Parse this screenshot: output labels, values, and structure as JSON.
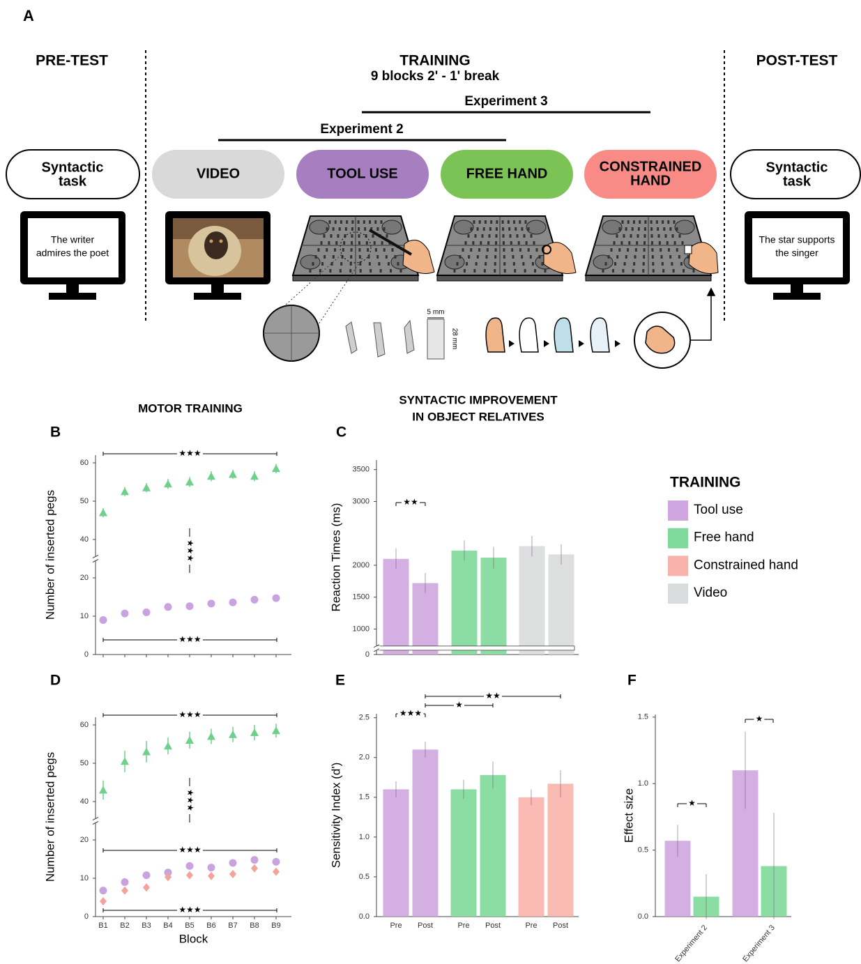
{
  "figure": {
    "panel": "A",
    "pretest": "PRE-TEST",
    "training": "TRAINING",
    "training_sub": "9 blocks 2' - 1' break",
    "posttest": "POST-TEST",
    "exp3": "Experiment 3",
    "exp2": "Experiment 2",
    "task_left": [
      "Syntactic",
      "task"
    ],
    "task_right": [
      "Syntactic",
      "task"
    ],
    "screen_left": [
      "The writer",
      "admires the poet"
    ],
    "screen_right": [
      "The star supports",
      "the singer"
    ],
    "conditions": [
      {
        "label": [
          "VIDEO"
        ],
        "color": "#d9d9d9"
      },
      {
        "label": [
          "TOOL USE"
        ],
        "color": "#a77fc1"
      },
      {
        "label": [
          "FREE HAND"
        ],
        "color": "#7cc356"
      },
      {
        "label": [
          "CONSTRAINED",
          "HAND"
        ],
        "color": "#f88b85"
      }
    ],
    "peg_width": "5 mm",
    "peg_height": "28 mm",
    "motor_header": "MOTOR TRAINING",
    "syntax_header": [
      "SYNTACTIC IMPROVEMENT",
      "IN OBJECT RELATIVES"
    ]
  },
  "chart_data": [
    {
      "type": "point",
      "panel": "B",
      "ylabel": "Number of inserted pegs",
      "ylim": [
        0,
        62
      ],
      "ybreak": [
        25,
        35
      ],
      "yticks": [
        0,
        10,
        20,
        40,
        50,
        60
      ],
      "series": [
        {
          "color": "#6fd08c",
          "marker": "triangle",
          "values": [
            47,
            52.5,
            53.5,
            54.5,
            55,
            56.5,
            57,
            56.5,
            58.5
          ],
          "errors": [
            1.2,
            1.2,
            1.2,
            1.3,
            1.3,
            1.3,
            1.2,
            1.3,
            1.2
          ]
        },
        {
          "color": "#c9a2e0",
          "marker": "circle",
          "values": [
            9,
            10.7,
            11,
            12.4,
            12.6,
            13.3,
            13.6,
            14.3,
            14.7
          ],
          "errors": [
            0.7,
            0.7,
            0.7,
            0.7,
            0.7,
            0.7,
            0.7,
            0.7,
            0.7
          ]
        }
      ],
      "annotations": [
        "★★★",
        "★★★",
        "★★★"
      ]
    },
    {
      "type": "bar",
      "panel": "C",
      "ylabel": "Reaction Times (ms)",
      "ylim": [
        0,
        3650
      ],
      "ybreak": [
        100,
        700
      ],
      "yticks": [
        0,
        1000,
        1500,
        2000,
        3000,
        3500
      ],
      "legend_title": "TRAINING",
      "series": [
        {
          "name": "Tool use",
          "color": "#cfa6df",
          "values": [
            2100,
            1720
          ],
          "errors": [
            160,
            160
          ]
        },
        {
          "name": "Free hand",
          "color": "#7ed99a",
          "values": [
            2230,
            2120
          ],
          "errors": [
            160,
            170
          ]
        },
        {
          "name": "Video",
          "color": "#d9dcdc",
          "values": [
            2300,
            2170
          ],
          "errors": [
            160,
            160
          ]
        }
      ],
      "annotations": [
        "★★"
      ]
    },
    {
      "type": "point",
      "panel": "D",
      "ylabel": "Number of inserted pegs",
      "xlabel": "Block",
      "categories": [
        "B1",
        "B2",
        "B3",
        "B4",
        "B5",
        "B6",
        "B7",
        "B8",
        "B9"
      ],
      "ylim": [
        0,
        62
      ],
      "ybreak": [
        25,
        35
      ],
      "yticks": [
        0,
        10,
        20,
        40,
        50,
        60
      ],
      "series": [
        {
          "color": "#6fd08c",
          "marker": "triangle",
          "values": [
            43,
            50.5,
            53,
            54.5,
            56,
            57,
            57.5,
            58,
            58.5
          ],
          "errors": [
            2.5,
            2.8,
            2.8,
            2.2,
            2.2,
            2,
            2,
            2,
            1.8
          ]
        },
        {
          "color": "#c9a2e0",
          "marker": "circle",
          "values": [
            6.8,
            9,
            10.8,
            11.5,
            13.2,
            12.8,
            14,
            14.8,
            14.3
          ],
          "errors": [
            0.8,
            0.8,
            0.8,
            0.8,
            0.8,
            0.8,
            0.8,
            0.8,
            0.8
          ]
        },
        {
          "color": "#f4a39b",
          "marker": "diamond",
          "values": [
            4,
            6.8,
            7.6,
            10.3,
            10.8,
            10.6,
            11.1,
            12.6,
            11.7
          ],
          "errors": [
            0.8,
            0.8,
            0.8,
            0.8,
            0.8,
            0.8,
            0.8,
            0.8,
            0.8
          ]
        }
      ],
      "annotations": [
        "★★★",
        "★★★",
        "★★★",
        "★★★"
      ]
    },
    {
      "type": "bar",
      "panel": "E",
      "ylabel": "Sensitivity Index (d')",
      "categories": [
        "Pre",
        "Post"
      ],
      "ylim": [
        0,
        2.55
      ],
      "yticks": [
        {
          "value": 0,
          "label": "0.0"
        },
        0.5,
        {
          "value": 1,
          "label": "1.0"
        },
        1.5,
        {
          "value": 2,
          "label": "2.0"
        },
        2.5
      ],
      "series": [
        {
          "color": "#cfa6df",
          "values": [
            1.6,
            2.1
          ],
          "errors": [
            0.1,
            0.1
          ]
        },
        {
          "color": "#7ed99a",
          "values": [
            1.6,
            1.78
          ],
          "errors": [
            0.12,
            0.17
          ]
        },
        {
          "name": "Constrained hand",
          "color": "#f7b3ab",
          "values": [
            1.5,
            1.67
          ],
          "errors": [
            0.1,
            0.17
          ]
        }
      ],
      "annotations": [
        "★★★",
        "★",
        "★★"
      ]
    },
    {
      "type": "bar",
      "panel": "F",
      "ylabel": "Effect size",
      "categories": [
        "Experiment 2",
        "Experiment 3"
      ],
      "ylim": [
        0,
        1.52
      ],
      "yticks": [
        {
          "value": 0,
          "label": "0.0"
        },
        0.5,
        {
          "value": 1,
          "label": "1.0"
        },
        1.5
      ],
      "series": [
        {
          "color": "#cfa6df",
          "values": [
            0.57,
            1.1
          ],
          "errors": [
            0.12,
            0.29
          ]
        },
        {
          "color": "#7ed99a",
          "values": [
            0.15,
            0.38
          ],
          "errors": [
            0.17,
            0.4
          ]
        }
      ],
      "annotations": [
        "★",
        "★"
      ]
    }
  ]
}
